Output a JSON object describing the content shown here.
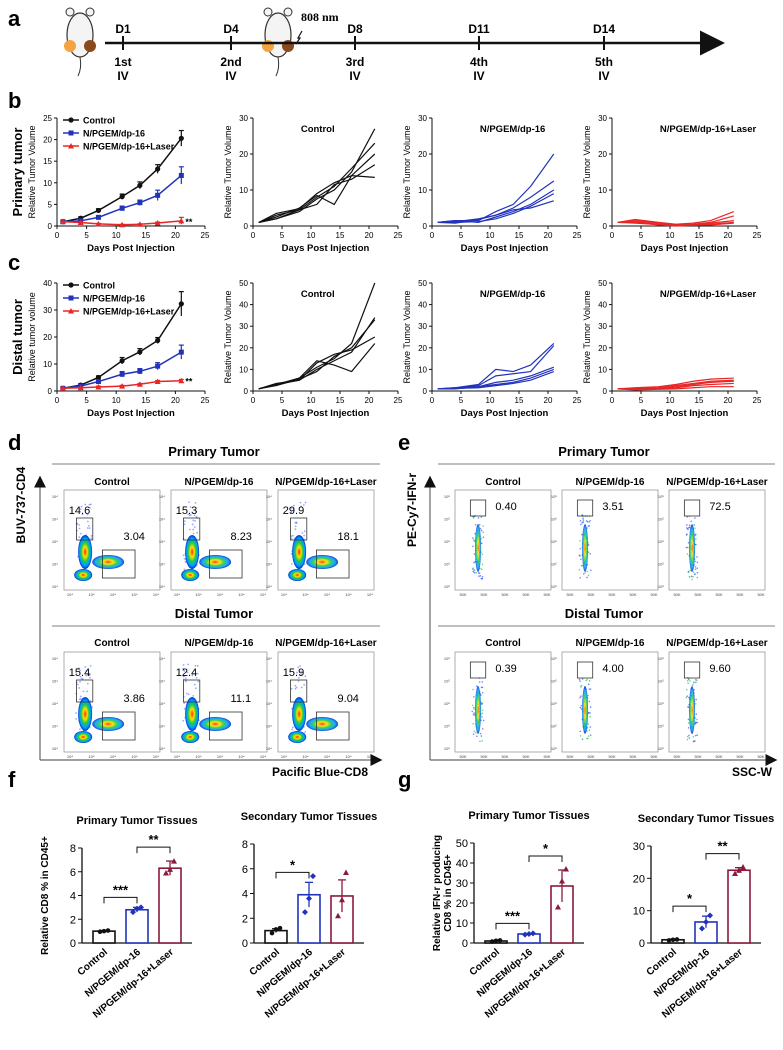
{
  "colors": {
    "black": "#111111",
    "blue": "#2233bb",
    "red": "#e82626",
    "darkred": "#8b1a3a",
    "grid": "#777777"
  },
  "panel_letters": [
    "a",
    "b",
    "c",
    "d",
    "e",
    "f",
    "g"
  ],
  "timeline": {
    "laser_label": "808 nm",
    "days": [
      "D1",
      "D4",
      "D8",
      "D11",
      "D14"
    ],
    "doses": [
      [
        "1st",
        "IV"
      ],
      [
        "2nd",
        "IV"
      ],
      [
        "3rd",
        "IV"
      ],
      [
        "4th",
        "IV"
      ],
      [
        "5th",
        "IV"
      ]
    ]
  },
  "growth": {
    "x_label": "Days Post Injection",
    "x_ticks": [
      "0",
      "5",
      "10",
      "15",
      "20",
      "25"
    ],
    "legend": [
      "Control",
      "N/PGEM/dp-16",
      "N/PGEM/dp-16+Laser"
    ],
    "individual_titles": [
      "Control",
      "N/PGEM/dp-16",
      "N/PGEM/dp-16+Laser"
    ],
    "significance": "**",
    "primary": {
      "row_label": "Primary tumor",
      "y_label_mean": "Relative Tumor Volume",
      "y_label_ind": "Relative Tumor Volume",
      "y_ticks": [
        "0",
        "5",
        "10",
        "15",
        "20",
        "25"
      ],
      "y_ticks_ind": [
        "0",
        "10",
        "20",
        "30"
      ]
    },
    "distal": {
      "row_label": "Distal tumor",
      "y_label_mean": "Relative tumor volume",
      "y_label_ind": "Relative Tumor Volume",
      "y_ticks": [
        "0",
        "10",
        "20",
        "30",
        "40"
      ],
      "y_ticks_ind": [
        "0",
        "10",
        "20",
        "30",
        "40",
        "50"
      ]
    }
  },
  "chart_data": [
    {
      "id": "b-mean",
      "type": "line",
      "title": "Primary tumor",
      "xlabel": "Days Post Injection",
      "ylabel": "Relative Tumor Volume",
      "xlim": [
        0,
        25
      ],
      "ylim": [
        0,
        25
      ],
      "x": [
        1,
        4,
        7,
        11,
        14,
        17,
        21
      ],
      "series": [
        {
          "name": "Control",
          "values": [
            1,
            1.8,
            3.6,
            6.8,
            9.4,
            13.2,
            20.3
          ],
          "err": [
            0.1,
            0.3,
            0.4,
            0.6,
            0.8,
            1,
            1.8
          ]
        },
        {
          "name": "N/PGEM/dp-16",
          "values": [
            1,
            1.2,
            2,
            4.1,
            5.4,
            7.1,
            11.7
          ],
          "err": [
            0.1,
            0.2,
            0.3,
            0.5,
            0.6,
            1.2,
            2
          ]
        },
        {
          "name": "N/PGEM/dp-16+Laser",
          "values": [
            1,
            0.8,
            0.5,
            0.3,
            0.4,
            0.7,
            1.2
          ],
          "err": [
            0.1,
            0.1,
            0.1,
            0.1,
            0.1,
            0.2,
            0.8
          ]
        }
      ]
    },
    {
      "id": "b-control",
      "type": "line",
      "title": "Control",
      "ylim": [
        0,
        30
      ],
      "xlim": [
        0,
        25
      ],
      "x": [
        1,
        4,
        8,
        11,
        14,
        17,
        21
      ],
      "series": [
        {
          "values": [
            1,
            2,
            4,
            7.5,
            10,
            15,
            27
          ]
        },
        {
          "values": [
            1,
            3,
            4.5,
            8,
            11,
            16,
            23
          ]
        },
        {
          "values": [
            1,
            2.5,
            5,
            8.5,
            6,
            14,
            20
          ]
        },
        {
          "values": [
            1,
            2,
            4.5,
            6,
            11.5,
            13,
            17
          ]
        },
        {
          "values": [
            1,
            3.5,
            4.8,
            9,
            12,
            14,
            13.5
          ]
        }
      ]
    },
    {
      "id": "b-np",
      "type": "line",
      "title": "N/PGEM/dp-16",
      "ylim": [
        0,
        30
      ],
      "xlim": [
        0,
        25
      ],
      "x": [
        1,
        4,
        8,
        11,
        14,
        17,
        21
      ],
      "series": [
        {
          "values": [
            1,
            1.5,
            1.5,
            4,
            6,
            11,
            20
          ]
        },
        {
          "values": [
            1,
            1.2,
            2,
            3,
            5,
            8,
            12.5
          ]
        },
        {
          "values": [
            1,
            1.5,
            1,
            2.5,
            4,
            6,
            10
          ]
        },
        {
          "values": [
            1,
            1,
            1.2,
            2,
            3.5,
            5.5,
            9
          ]
        },
        {
          "values": [
            1,
            0.8,
            1.8,
            3,
            4.5,
            5,
            7
          ]
        }
      ]
    },
    {
      "id": "b-laser",
      "type": "line",
      "title": "N/PGEM/dp-16+Laser",
      "ylim": [
        0,
        30
      ],
      "xlim": [
        0,
        25
      ],
      "x": [
        1,
        4,
        8,
        11,
        14,
        17,
        21
      ],
      "series": [
        {
          "values": [
            1,
            1.8,
            1,
            0.5,
            0.8,
            1.5,
            4
          ]
        },
        {
          "values": [
            1,
            1.2,
            0.5,
            0.3,
            0.5,
            1,
            2.8
          ]
        },
        {
          "values": [
            1,
            1.5,
            0.8,
            0.2,
            0.3,
            0.8,
            1.5
          ]
        },
        {
          "values": [
            1,
            0.8,
            0.4,
            0.1,
            0.2,
            0.5,
            1
          ]
        },
        {
          "values": [
            1,
            1,
            0.3,
            0,
            0.2,
            0.3,
            0.8
          ]
        }
      ]
    },
    {
      "id": "c-mean",
      "type": "line",
      "title": "Distal tumor",
      "xlabel": "Days Post Injection",
      "ylabel": "Relative tumor volume",
      "xlim": [
        0,
        25
      ],
      "ylim": [
        0,
        40
      ],
      "x": [
        1,
        4,
        7,
        11,
        14,
        17,
        21
      ],
      "series": [
        {
          "name": "Control",
          "values": [
            1,
            2.2,
            5,
            11.2,
            14.5,
            18.7,
            32.3
          ],
          "err": [
            0.2,
            0.5,
            0.6,
            1.2,
            1.2,
            1.1,
            4.5
          ]
        },
        {
          "name": "N/PGEM/dp-16",
          "values": [
            1,
            1.8,
            3.5,
            6.2,
            7.3,
            9.2,
            14.4
          ],
          "err": [
            0.2,
            0.4,
            0.6,
            1,
            1,
            1.3,
            2.6
          ]
        },
        {
          "name": "N/PGEM/dp-16+Laser",
          "values": [
            1,
            1.2,
            1.5,
            1.8,
            2.5,
            3.5,
            3.8
          ],
          "err": [
            0.1,
            0.2,
            0.3,
            0.3,
            0.3,
            0.4,
            0.5
          ]
        }
      ]
    },
    {
      "id": "c-control",
      "type": "line",
      "title": "Control",
      "ylim": [
        0,
        50
      ],
      "xlim": [
        0,
        25
      ],
      "x": [
        1,
        4,
        8,
        11,
        14,
        17,
        21
      ],
      "series": [
        {
          "values": [
            1,
            3,
            6,
            11,
            15,
            22,
            50
          ]
        },
        {
          "values": [
            1,
            3.5,
            5,
            10,
            14,
            18,
            34
          ]
        },
        {
          "values": [
            1,
            2.5,
            5.5,
            9,
            16,
            20,
            33
          ]
        },
        {
          "values": [
            1,
            3,
            5,
            13,
            17,
            19,
            25
          ]
        },
        {
          "values": [
            1,
            2.8,
            6,
            14,
            12,
            9,
            22
          ]
        }
      ]
    },
    {
      "id": "c-np",
      "type": "line",
      "title": "N/PGEM/dp-16",
      "ylim": [
        0,
        50
      ],
      "xlim": [
        0,
        25
      ],
      "x": [
        1,
        4,
        8,
        11,
        14,
        17,
        21
      ],
      "series": [
        {
          "values": [
            1,
            1.5,
            3,
            10,
            9,
            12,
            22
          ]
        },
        {
          "values": [
            1,
            1.2,
            2.5,
            7,
            8,
            9,
            21
          ]
        },
        {
          "values": [
            1,
            1,
            2,
            4,
            5,
            7,
            11
          ]
        },
        {
          "values": [
            1,
            1.5,
            2,
            3,
            4,
            6,
            10
          ]
        },
        {
          "values": [
            1,
            1.2,
            1.5,
            2.5,
            3.5,
            5,
            9
          ]
        }
      ]
    },
    {
      "id": "c-laser",
      "type": "line",
      "title": "N/PGEM/dp-16+Laser",
      "ylim": [
        0,
        50
      ],
      "xlim": [
        0,
        25
      ],
      "x": [
        1,
        4,
        8,
        11,
        14,
        17,
        21
      ],
      "series": [
        {
          "values": [
            1,
            1.5,
            2,
            3,
            4.5,
            5.5,
            6
          ]
        },
        {
          "values": [
            1,
            1.2,
            1.5,
            2.5,
            3.5,
            4.5,
            5
          ]
        },
        {
          "values": [
            1,
            1,
            1.2,
            2,
            3,
            4,
            4.5
          ]
        },
        {
          "values": [
            1,
            0.8,
            1,
            1.5,
            2.5,
            3,
            3.5
          ]
        },
        {
          "values": [
            1,
            0.5,
            0.8,
            1,
            1.5,
            2,
            2
          ]
        }
      ]
    },
    {
      "id": "f-primary",
      "type": "bar",
      "title": "Primary Tumor Tissues",
      "ylabel": "Relative CD8 % in CD45+",
      "categories": [
        "Control",
        "N/PGEM/dp-16",
        "N/PGEM/dp-16+Laser"
      ],
      "values": [
        1,
        2.8,
        6.3
      ],
      "err": [
        0.05,
        0.2,
        0.6
      ],
      "ylim": [
        0,
        8
      ],
      "points": [
        [
          0.95,
          1,
          1.05
        ],
        [
          2.6,
          2.9,
          3.0
        ],
        [
          5.9,
          6.2,
          6.9
        ]
      ],
      "sig": [
        [
          "***",
          0,
          1
        ],
        [
          "**",
          1,
          2
        ]
      ]
    },
    {
      "id": "f-secondary",
      "type": "bar",
      "title": "Secondary Tumor Tissues",
      "categories": [
        "Control",
        "N/PGEM/dp-16",
        "N/PGEM/dp-16+Laser"
      ],
      "values": [
        1,
        3.9,
        3.8
      ],
      "err": [
        0.15,
        1,
        1.3
      ],
      "ylim": [
        0,
        8
      ],
      "points": [
        [
          0.8,
          1.1,
          1.2
        ],
        [
          2.5,
          3.6,
          5.4
        ],
        [
          2.2,
          3.5,
          5.7
        ]
      ],
      "sig": [
        [
          "*",
          0,
          1
        ]
      ]
    },
    {
      "id": "g-primary",
      "type": "bar",
      "title": "Primary Tumor Tissues",
      "ylabel": "Relative IFN-r producing CD8 % in CD45+",
      "categories": [
        "Control",
        "N/PGEM/dp-16",
        "N/PGEM/dp-16+Laser"
      ],
      "values": [
        1,
        4.5,
        28.5
      ],
      "err": [
        0.3,
        0.3,
        8
      ],
      "ylim": [
        0,
        50
      ],
      "points": [
        [
          0.7,
          1.1,
          1.3
        ],
        [
          4.2,
          4.5,
          4.8
        ],
        [
          18,
          31,
          37
        ]
      ],
      "sig": [
        [
          "***",
          0,
          1
        ],
        [
          "*",
          1,
          2
        ]
      ]
    },
    {
      "id": "g-secondary",
      "type": "bar",
      "title": "Secondary Tumor Tissues",
      "categories": [
        "Control",
        "N/PGEM/dp-16",
        "N/PGEM/dp-16+Laser"
      ],
      "values": [
        1,
        6.5,
        22.5
      ],
      "err": [
        0.2,
        1.8,
        0.8
      ],
      "ylim": [
        0,
        30
      ],
      "points": [
        [
          0.8,
          1,
          1.1
        ],
        [
          4.5,
          6.5,
          8.5
        ],
        [
          21.5,
          22.5,
          23.5
        ]
      ],
      "sig": [
        [
          "*",
          0,
          1
        ],
        [
          "**",
          1,
          2
        ]
      ]
    }
  ],
  "flow_cd4": {
    "primary_title": "Primary Tumor",
    "distal_title": "Distal Tumor",
    "y_axis": "BUV-737-CD4",
    "x_axis": "Pacific Blue-CD8",
    "groups": [
      "Control",
      "N/PGEM/dp-16",
      "N/PGEM/dp-16+Laser"
    ],
    "primary_values": [
      [
        "14.6",
        "3.04"
      ],
      [
        "15.3",
        "8.23"
      ],
      [
        "29.9",
        "18.1"
      ]
    ],
    "distal_values": [
      [
        "15.4",
        "3.86"
      ],
      [
        "12.4",
        "11.1"
      ],
      [
        "15.9",
        "9.04"
      ]
    ]
  },
  "flow_ifn": {
    "primary_title": "Primary Tumor",
    "distal_title": "Distal Tumor",
    "y_axis": "PE-Cy7-IFN-r",
    "x_axis": "SSC-W",
    "groups": [
      "Control",
      "N/PGEM/dp-16",
      "N/PGEM/dp-16+Laser"
    ],
    "primary_values": [
      "0.40",
      "3.51",
      "72.5"
    ],
    "distal_values": [
      "0.39",
      "4.00",
      "9.60"
    ]
  }
}
